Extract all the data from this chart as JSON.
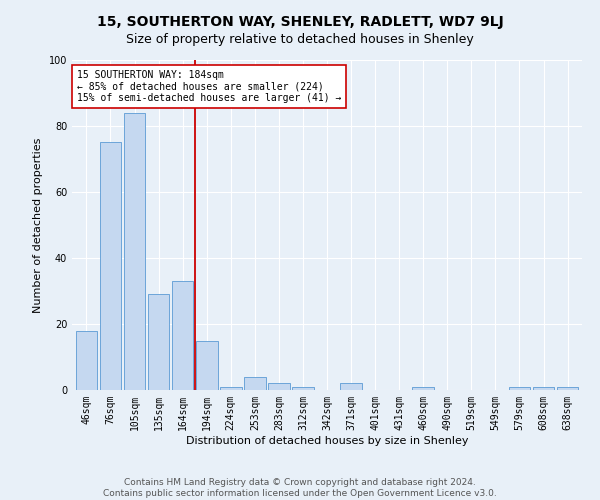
{
  "title": "15, SOUTHERTON WAY, SHENLEY, RADLETT, WD7 9LJ",
  "subtitle": "Size of property relative to detached houses in Shenley",
  "xlabel": "Distribution of detached houses by size in Shenley",
  "ylabel": "Number of detached properties",
  "categories": [
    "46sqm",
    "76sqm",
    "105sqm",
    "135sqm",
    "164sqm",
    "194sqm",
    "224sqm",
    "253sqm",
    "283sqm",
    "312sqm",
    "342sqm",
    "371sqm",
    "401sqm",
    "431sqm",
    "460sqm",
    "490sqm",
    "519sqm",
    "549sqm",
    "579sqm",
    "608sqm",
    "638sqm"
  ],
  "values": [
    18,
    75,
    84,
    29,
    33,
    15,
    1,
    4,
    2,
    1,
    0,
    2,
    0,
    0,
    1,
    0,
    0,
    0,
    1,
    1,
    1
  ],
  "bar_color": "#c5d8f0",
  "bar_edge_color": "#5b9bd5",
  "ylim": [
    0,
    100
  ],
  "yticks": [
    0,
    20,
    40,
    60,
    80,
    100
  ],
  "vline_color": "#cc0000",
  "vline_pos": 4.5,
  "annotation_line1": "15 SOUTHERTON WAY: 184sqm",
  "annotation_line2": "← 85% of detached houses are smaller (224)",
  "annotation_line3": "15% of semi-detached houses are larger (41) →",
  "footer1": "Contains HM Land Registry data © Crown copyright and database right 2024.",
  "footer2": "Contains public sector information licensed under the Open Government Licence v3.0.",
  "background_color": "#e8f0f8",
  "plot_bg_color": "#e8f0f8",
  "title_fontsize": 10,
  "subtitle_fontsize": 9,
  "xlabel_fontsize": 8,
  "ylabel_fontsize": 8,
  "tick_fontsize": 7,
  "annotation_fontsize": 7,
  "footer_fontsize": 6.5
}
